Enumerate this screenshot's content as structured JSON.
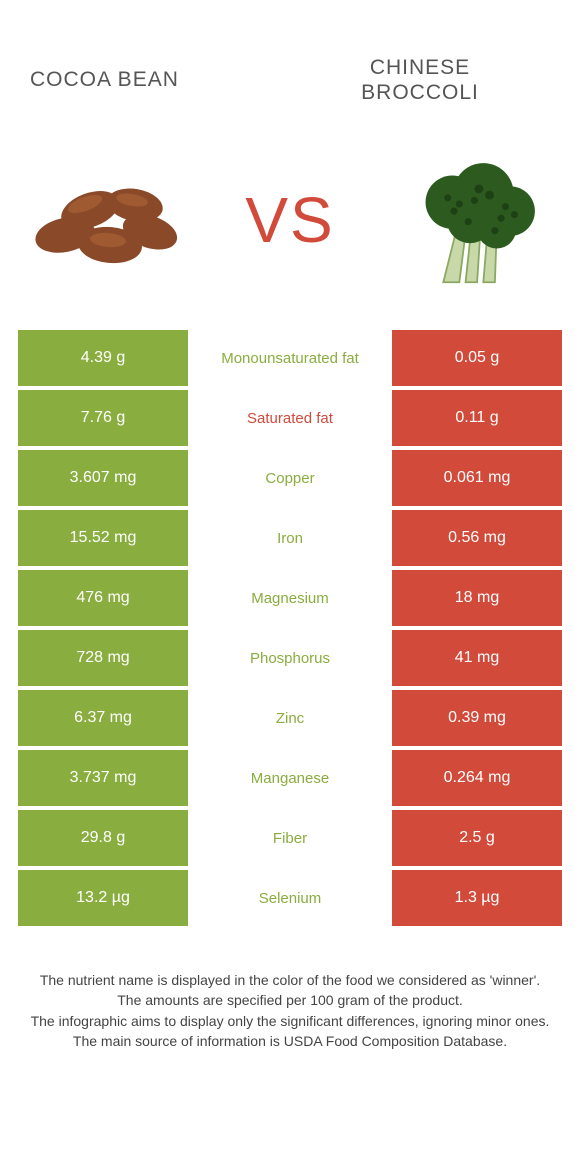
{
  "header": {
    "left_title": "COCOA BEAN",
    "right_title_l1": "CHINESE",
    "right_title_l2": "BROCCOLI",
    "vs": "VS"
  },
  "colors": {
    "left_winner": "#8aad3f",
    "right_winner": "#d24a3a",
    "left_normal": "#8aad3f",
    "right_normal": "#d24a3a",
    "label_left_win": "#8aad3f",
    "label_right_win": "#d24a3a"
  },
  "rows": [
    {
      "label": "Monounsaturated fat",
      "left": "4.39 g",
      "right": "0.05 g",
      "winner": "left"
    },
    {
      "label": "Saturated fat",
      "left": "7.76 g",
      "right": "0.11 g",
      "winner": "right"
    },
    {
      "label": "Copper",
      "left": "3.607 mg",
      "right": "0.061 mg",
      "winner": "left"
    },
    {
      "label": "Iron",
      "left": "15.52 mg",
      "right": "0.56 mg",
      "winner": "left"
    },
    {
      "label": "Magnesium",
      "left": "476 mg",
      "right": "18 mg",
      "winner": "left"
    },
    {
      "label": "Phosphorus",
      "left": "728 mg",
      "right": "41 mg",
      "winner": "left"
    },
    {
      "label": "Zinc",
      "left": "6.37 mg",
      "right": "0.39 mg",
      "winner": "left"
    },
    {
      "label": "Manganese",
      "left": "3.737 mg",
      "right": "0.264 mg",
      "winner": "left"
    },
    {
      "label": "Fiber",
      "left": "29.8 g",
      "right": "2.5 g",
      "winner": "left"
    },
    {
      "label": "Selenium",
      "left": "13.2 µg",
      "right": "1.3 µg",
      "winner": "left"
    }
  ],
  "footer": {
    "l1": "The nutrient name is displayed in the color of the food we considered as 'winner'.",
    "l2": "The amounts are specified per 100 gram of the product.",
    "l3": "The infographic aims to display only the significant differences, ignoring minor ones.",
    "l4": "The main source of information is USDA Food Composition Database."
  }
}
